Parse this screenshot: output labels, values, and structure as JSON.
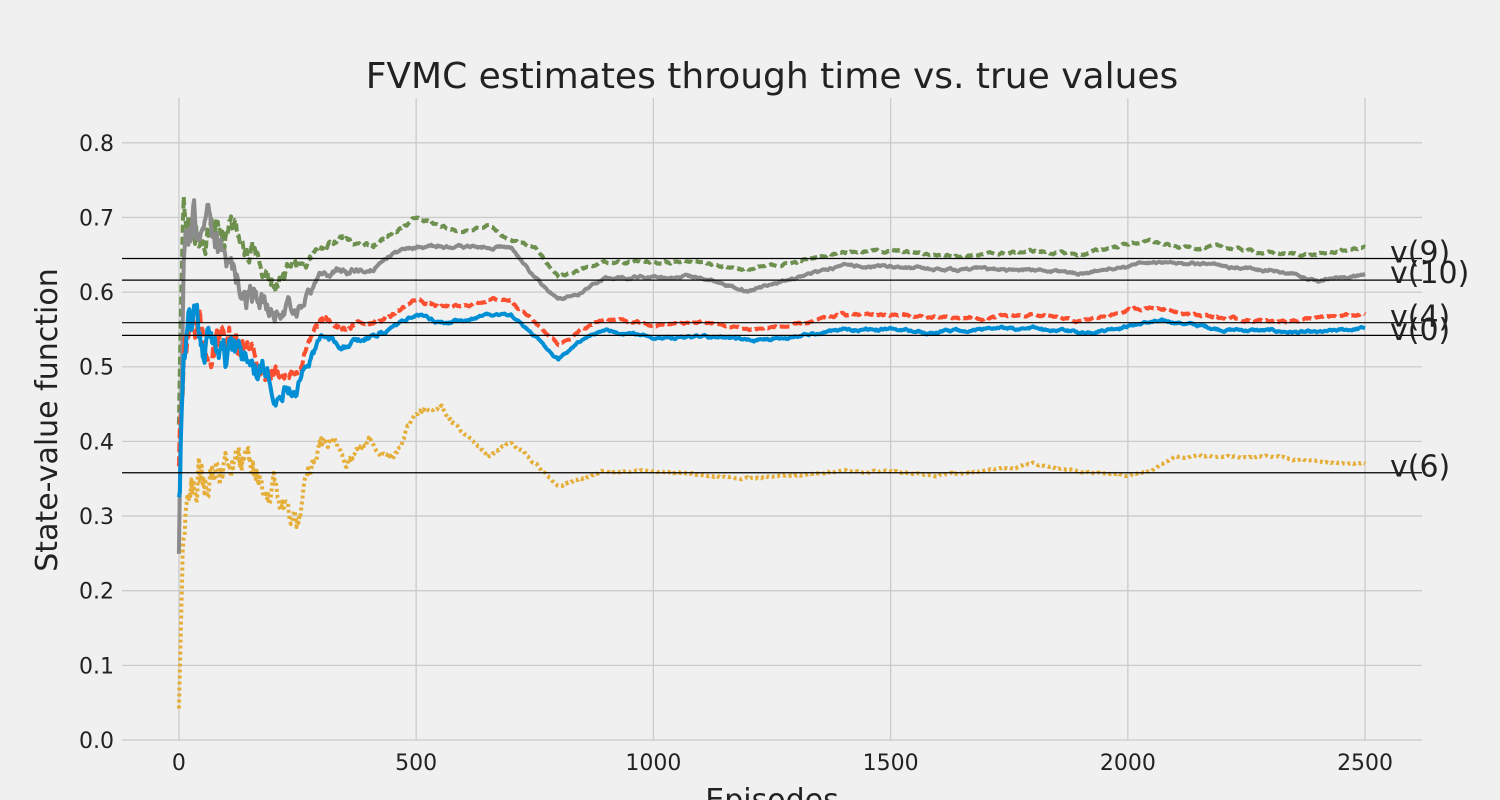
{
  "chart_data": {
    "type": "line",
    "title": "FVMC estimates through time vs. true values",
    "xlabel": "Episodes",
    "ylabel": "State-value function",
    "xlim": [
      -120,
      2620
    ],
    "ylim": [
      0.0,
      0.86
    ],
    "xticks": [
      0,
      500,
      1000,
      1500,
      2000,
      2500
    ],
    "yticks": [
      0.0,
      0.1,
      0.2,
      0.3,
      0.4,
      0.5,
      0.6,
      0.7,
      0.8
    ],
    "grid": true,
    "background": "#f0f0f0",
    "reference_lines": [
      {
        "label": "v(9)",
        "value": 0.645
      },
      {
        "label": "v(10)",
        "value": 0.616
      },
      {
        "label": "v(4)",
        "value": 0.559
      },
      {
        "label": "v(0)",
        "value": 0.542
      },
      {
        "label": "v(6)",
        "value": 0.358
      }
    ],
    "series": [
      {
        "color": "#6d904f",
        "dash": "8,4",
        "width": 4,
        "seed": 9,
        "x": [
          0,
          10,
          30,
          50,
          80,
          100,
          150,
          200,
          250,
          300,
          350,
          400,
          450,
          500,
          550,
          600,
          650,
          700,
          750,
          800,
          850,
          900,
          1000,
          1100,
          1200,
          1300,
          1400,
          1500,
          1600,
          1700,
          1800,
          1900,
          2000,
          2050,
          2100,
          2200,
          2300,
          2400,
          2500
        ],
        "y": [
          0.45,
          0.7,
          0.74,
          0.72,
          0.71,
          0.68,
          0.66,
          0.62,
          0.63,
          0.66,
          0.67,
          0.66,
          0.68,
          0.7,
          0.69,
          0.68,
          0.69,
          0.67,
          0.66,
          0.62,
          0.63,
          0.64,
          0.64,
          0.64,
          0.63,
          0.64,
          0.655,
          0.655,
          0.65,
          0.65,
          0.655,
          0.65,
          0.665,
          0.668,
          0.66,
          0.66,
          0.652,
          0.65,
          0.66
        ],
        "noise": [
          0.1,
          0.08,
          0.08,
          0.07,
          0.06,
          0.05,
          0.04,
          0.03,
          0.02,
          0.012,
          0.01,
          0.008,
          0.006,
          0.005,
          0.005,
          0.004,
          0.004,
          0.004,
          0.004,
          0.004,
          0.004,
          0.004,
          0.004,
          0.004,
          0.004,
          0.004,
          0.004,
          0.004,
          0.004,
          0.004,
          0.004,
          0.004,
          0.004,
          0.004,
          0.004,
          0.004,
          0.004,
          0.004,
          0.004
        ]
      },
      {
        "color": "#8b8b8b",
        "dash": "",
        "width": 4,
        "seed": 10,
        "x": [
          0,
          10,
          30,
          50,
          80,
          100,
          150,
          200,
          250,
          300,
          350,
          400,
          450,
          500,
          550,
          600,
          650,
          700,
          750,
          800,
          850,
          900,
          1000,
          1100,
          1200,
          1300,
          1400,
          1500,
          1600,
          1700,
          1800,
          1900,
          2000,
          2050,
          2100,
          2200,
          2300,
          2400,
          2500
        ],
        "y": [
          0.25,
          0.62,
          0.68,
          0.66,
          0.65,
          0.62,
          0.6,
          0.57,
          0.58,
          0.62,
          0.63,
          0.63,
          0.65,
          0.66,
          0.66,
          0.66,
          0.66,
          0.66,
          0.62,
          0.59,
          0.6,
          0.62,
          0.62,
          0.62,
          0.6,
          0.62,
          0.635,
          0.635,
          0.63,
          0.63,
          0.63,
          0.625,
          0.635,
          0.64,
          0.64,
          0.635,
          0.63,
          0.615,
          0.625
        ],
        "noise": [
          0.1,
          0.08,
          0.08,
          0.07,
          0.06,
          0.05,
          0.04,
          0.03,
          0.02,
          0.012,
          0.01,
          0.008,
          0.006,
          0.005,
          0.005,
          0.004,
          0.004,
          0.004,
          0.004,
          0.004,
          0.004,
          0.004,
          0.004,
          0.004,
          0.004,
          0.004,
          0.004,
          0.004,
          0.004,
          0.004,
          0.004,
          0.004,
          0.004,
          0.004,
          0.004,
          0.004,
          0.004,
          0.004,
          0.004
        ]
      },
      {
        "color": "#fc4f30",
        "dash": "10,4",
        "width": 4,
        "seed": 4,
        "x": [
          0,
          10,
          30,
          50,
          80,
          100,
          150,
          200,
          250,
          300,
          350,
          400,
          450,
          500,
          550,
          600,
          650,
          700,
          750,
          800,
          850,
          900,
          1000,
          1100,
          1200,
          1300,
          1400,
          1500,
          1600,
          1700,
          1800,
          1900,
          2000,
          2050,
          2100,
          2200,
          2300,
          2400,
          2500
        ],
        "y": [
          0.35,
          0.52,
          0.58,
          0.55,
          0.55,
          0.53,
          0.52,
          0.5,
          0.5,
          0.56,
          0.55,
          0.56,
          0.57,
          0.59,
          0.58,
          0.58,
          0.59,
          0.59,
          0.56,
          0.53,
          0.55,
          0.565,
          0.555,
          0.56,
          0.55,
          0.555,
          0.57,
          0.57,
          0.565,
          0.565,
          0.57,
          0.56,
          0.575,
          0.58,
          0.575,
          0.565,
          0.56,
          0.565,
          0.57
        ],
        "noise": [
          0.1,
          0.08,
          0.07,
          0.06,
          0.06,
          0.05,
          0.04,
          0.03,
          0.02,
          0.012,
          0.01,
          0.008,
          0.006,
          0.005,
          0.005,
          0.004,
          0.004,
          0.004,
          0.004,
          0.004,
          0.004,
          0.004,
          0.004,
          0.004,
          0.004,
          0.004,
          0.004,
          0.004,
          0.004,
          0.004,
          0.004,
          0.004,
          0.004,
          0.004,
          0.004,
          0.004,
          0.004,
          0.004,
          0.004
        ]
      },
      {
        "color": "#008fd5",
        "dash": "",
        "width": 4,
        "seed": 1,
        "x": [
          0,
          10,
          30,
          50,
          80,
          100,
          150,
          200,
          250,
          300,
          350,
          400,
          450,
          500,
          550,
          600,
          650,
          700,
          750,
          800,
          850,
          900,
          1000,
          1100,
          1200,
          1300,
          1400,
          1500,
          1600,
          1700,
          1800,
          1900,
          2000,
          2050,
          2100,
          2200,
          2300,
          2400,
          2500
        ],
        "y": [
          0.33,
          0.5,
          0.55,
          0.53,
          0.53,
          0.51,
          0.5,
          0.48,
          0.48,
          0.54,
          0.53,
          0.54,
          0.55,
          0.57,
          0.56,
          0.56,
          0.57,
          0.57,
          0.54,
          0.51,
          0.535,
          0.55,
          0.54,
          0.54,
          0.535,
          0.54,
          0.55,
          0.55,
          0.545,
          0.55,
          0.552,
          0.545,
          0.555,
          0.56,
          0.56,
          0.55,
          0.548,
          0.545,
          0.552
        ],
        "noise": [
          0.1,
          0.08,
          0.07,
          0.06,
          0.06,
          0.05,
          0.04,
          0.03,
          0.02,
          0.012,
          0.01,
          0.008,
          0.006,
          0.005,
          0.005,
          0.004,
          0.004,
          0.004,
          0.004,
          0.004,
          0.004,
          0.004,
          0.004,
          0.004,
          0.004,
          0.004,
          0.004,
          0.004,
          0.004,
          0.004,
          0.004,
          0.004,
          0.004,
          0.004,
          0.004,
          0.004,
          0.004,
          0.004,
          0.004
        ]
      },
      {
        "color": "#e5ae38",
        "dash": "3,3",
        "width": 4,
        "seed": 6,
        "x": [
          0,
          5,
          10,
          20,
          40,
          60,
          100,
          150,
          200,
          250,
          300,
          350,
          400,
          450,
          500,
          550,
          600,
          650,
          700,
          750,
          800,
          850,
          900,
          1000,
          1100,
          1200,
          1300,
          1400,
          1500,
          1600,
          1700,
          1800,
          1900,
          2000,
          2050,
          2100,
          2200,
          2300,
          2400,
          2500
        ],
        "y": [
          0.04,
          0.15,
          0.25,
          0.3,
          0.38,
          0.33,
          0.4,
          0.34,
          0.33,
          0.29,
          0.4,
          0.38,
          0.4,
          0.38,
          0.44,
          0.45,
          0.41,
          0.38,
          0.4,
          0.37,
          0.34,
          0.35,
          0.36,
          0.36,
          0.355,
          0.35,
          0.355,
          0.36,
          0.36,
          0.355,
          0.36,
          0.37,
          0.36,
          0.355,
          0.36,
          0.38,
          0.38,
          0.38,
          0.372,
          0.37
        ],
        "noise": [
          0.02,
          0.05,
          0.08,
          0.1,
          0.09,
          0.08,
          0.07,
          0.06,
          0.05,
          0.04,
          0.025,
          0.02,
          0.015,
          0.012,
          0.01,
          0.008,
          0.006,
          0.005,
          0.005,
          0.004,
          0.004,
          0.004,
          0.003,
          0.003,
          0.003,
          0.003,
          0.003,
          0.003,
          0.003,
          0.003,
          0.003,
          0.003,
          0.003,
          0.003,
          0.003,
          0.003,
          0.003,
          0.003,
          0.003,
          0.003
        ]
      }
    ]
  }
}
